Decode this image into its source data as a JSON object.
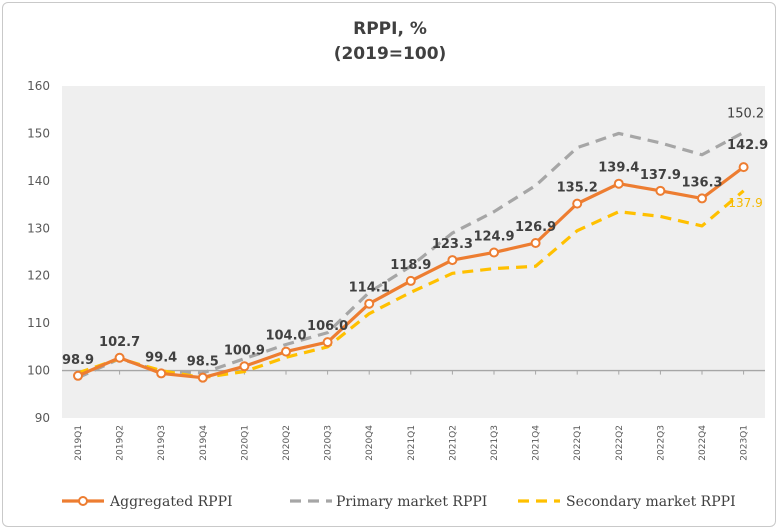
{
  "chart_data": {
    "type": "line",
    "title": "RPPI, %",
    "subtitle": "(2019=100)",
    "categories": [
      "2019Q1",
      "2019Q2",
      "2019Q3",
      "2019Q4",
      "2020Q1",
      "2020Q2",
      "2020Q3",
      "2020Q4",
      "2021Q1",
      "2021Q2",
      "2021Q3",
      "2021Q4",
      "2022Q1",
      "2022Q2",
      "2022Q3",
      "2022Q4",
      "2023Q1"
    ],
    "yticks": [
      "90",
      "100",
      "110",
      "120",
      "130",
      "140",
      "150",
      "160"
    ],
    "ylim": [
      90,
      160
    ],
    "grid": false,
    "legend_position": "bottom",
    "reference_line": 100,
    "series": [
      {
        "name": "Aggregated RPPI",
        "color": "#ed7d31",
        "style": "solid-markers",
        "values": [
          98.9,
          102.7,
          99.4,
          98.5,
          100.9,
          104.0,
          106.0,
          114.1,
          118.9,
          123.3,
          124.9,
          126.9,
          135.2,
          139.4,
          137.9,
          136.3,
          142.9
        ],
        "labels": [
          "98.9",
          "102.7",
          "99.4",
          "98.5",
          "100.9",
          "104.0",
          "106.0",
          "114.1",
          "118.9",
          "123.3",
          "124.9",
          "126.9",
          "135.2",
          "139.4",
          "137.9",
          "136.3",
          "142.9"
        ]
      },
      {
        "name": "Primary market RPPI",
        "color": "#a6a6a6",
        "style": "dashed",
        "values": [
          98.5,
          102.5,
          99.8,
          99.5,
          102.5,
          105.5,
          108.0,
          116.5,
          122.0,
          129.0,
          133.5,
          139.0,
          147.0,
          150.0,
          148.0,
          145.5,
          150.2
        ],
        "end_label": "150.2"
      },
      {
        "name": "Secondary market RPPI",
        "color": "#ffc000",
        "style": "dashed",
        "values": [
          99.5,
          102.5,
          100.0,
          98.5,
          99.8,
          102.8,
          105.0,
          112.0,
          116.5,
          120.5,
          121.5,
          122.0,
          129.5,
          133.5,
          132.5,
          130.5,
          137.9
        ],
        "end_label": "137.9"
      }
    ]
  }
}
